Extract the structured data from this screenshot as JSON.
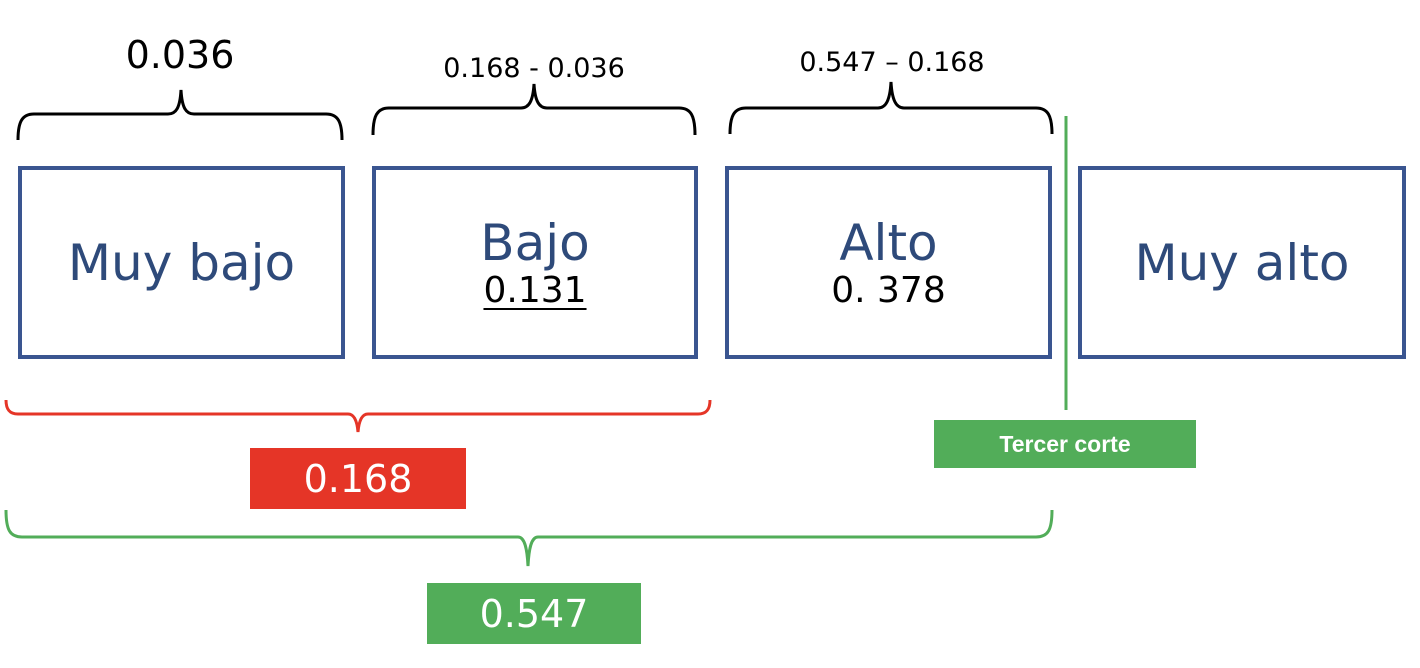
{
  "top_labels": {
    "segment_1": "0.036",
    "segment_2": "0.168 - 0.036",
    "segment_3": "0.547 – 0.168"
  },
  "categories": [
    {
      "name": "Muy bajo",
      "value": ""
    },
    {
      "name": "Bajo",
      "value": "0.131"
    },
    {
      "name": "Alto",
      "value": "0. 378"
    },
    {
      "name": "Muy alto",
      "value": ""
    }
  ],
  "cumulative": {
    "red_value": "0.168",
    "green_value": "0.547"
  },
  "cut_label": "Tercer corte",
  "colors": {
    "box_border": "#3a5590",
    "box_text": "#2e4a7a",
    "red": "#e53527",
    "green": "#52ad59",
    "brace_black": "#000000"
  }
}
